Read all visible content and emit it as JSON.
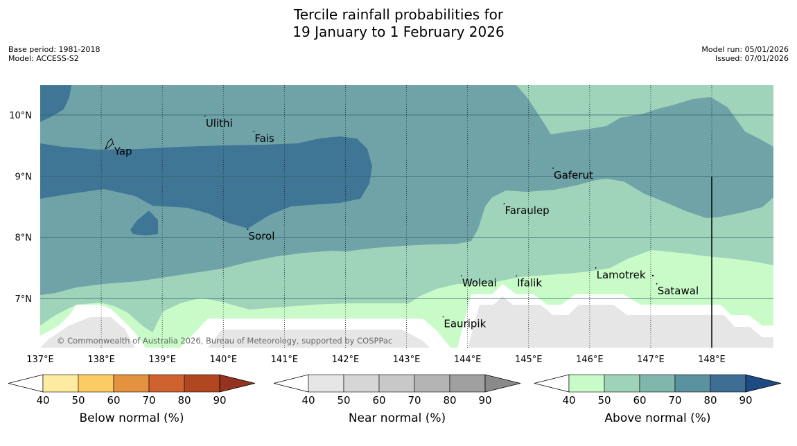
{
  "title": {
    "line1": "Tercile rainfall probabilities for",
    "line2": "19 January to 1 February 2026"
  },
  "meta": {
    "base_period": "Base period: 1981-2018",
    "model": "Model: ACCESS-S2",
    "model_run": "Model run: 05/01/2026",
    "issued": "Issued: 07/01/2026"
  },
  "axes": {
    "lon_ticks": [
      "137°E",
      "138°E",
      "139°E",
      "140°E",
      "141°E",
      "142°E",
      "143°E",
      "144°E",
      "145°E",
      "146°E",
      "147°E",
      "148°E"
    ],
    "lat_ticks": [
      "10°N",
      "9°N",
      "8°N",
      "7°N"
    ]
  },
  "places": [
    {
      "name": "Yap",
      "lon": 138.2,
      "lat": 9.52
    },
    {
      "name": "Ulithi",
      "lon": 139.7,
      "lat": 9.98
    },
    {
      "name": "Fais",
      "lon": 140.5,
      "lat": 9.73
    },
    {
      "name": "Sorol",
      "lon": 140.4,
      "lat": 8.13
    },
    {
      "name": "Gaferut",
      "lon": 145.4,
      "lat": 9.13
    },
    {
      "name": "Faraulep",
      "lon": 144.6,
      "lat": 8.55
    },
    {
      "name": "Woleai",
      "lon": 143.9,
      "lat": 7.37
    },
    {
      "name": "Ifalik",
      "lon": 144.8,
      "lat": 7.37
    },
    {
      "name": "Lamotrek",
      "lon": 146.1,
      "lat": 7.5
    },
    {
      "name": "Satawal",
      "lon": 147.1,
      "lat": 7.24
    },
    {
      "name": "Eauripik",
      "lon": 143.6,
      "lat": 6.7
    }
  ],
  "copyright": "© Commonwealth of Australia 2026, Bureau of Meteorology, supported by COSPPac",
  "colorbars": [
    {
      "name": "below",
      "label": "Below normal (%)",
      "ticks": [
        "40",
        "50",
        "60",
        "70",
        "80",
        "90"
      ],
      "colors": [
        "#fdeca0",
        "#fdcb64",
        "#e3923f",
        "#cf6330",
        "#b04721",
        "#963220"
      ]
    },
    {
      "name": "near",
      "label": "Near normal (%)",
      "ticks": [
        "40",
        "50",
        "60",
        "70",
        "80",
        "90"
      ],
      "colors": [
        "#e6e6e6",
        "#d6d6d6",
        "#c8c8c8",
        "#b4b4b4",
        "#a0a0a0",
        "#8a8a8a"
      ]
    },
    {
      "name": "above",
      "label": "Above normal (%)",
      "ticks": [
        "40",
        "50",
        "60",
        "70",
        "80",
        "90"
      ],
      "colors": [
        "#c8fbc8",
        "#9fd3b8",
        "#7fb7ad",
        "#5a92a0",
        "#3e6e94",
        "#1d4b82"
      ]
    }
  ]
}
